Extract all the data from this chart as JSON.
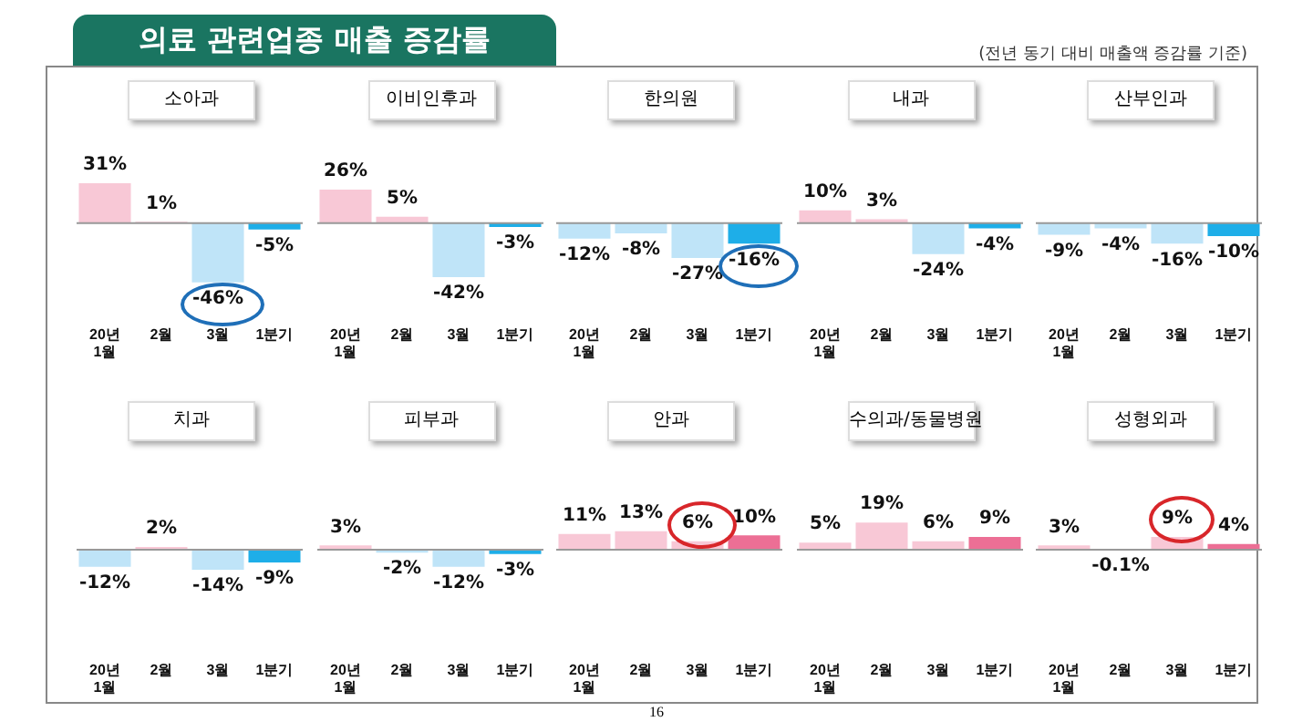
{
  "chart_data": [
    {
      "type": "other",
      "title": "의료 관련업종 매출 증감률",
      "subtitle": "(전년 동기 대비 매출액 증감률 기준)",
      "annotations": [
        "16"
      ]
    },
    {
      "type": "bar",
      "title": "소아과",
      "categories": [
        "20년 1월",
        "2월",
        "3월",
        "1분기"
      ],
      "values": [
        31,
        1,
        -46,
        -5
      ],
      "value_labels": [
        "31%",
        "1%",
        "-46%",
        "-5%"
      ],
      "colors": [
        "#f8c8d6",
        "#f8c8d6",
        "#bfe4f8",
        "#1eaee8"
      ]
    },
    {
      "type": "bar",
      "title": "이비인후과",
      "categories": [
        "20년 1월",
        "2월",
        "3월",
        "1분기"
      ],
      "values": [
        26,
        5,
        -42,
        -3
      ],
      "value_labels": [
        "26%",
        "5%",
        "-42%",
        "-3%"
      ],
      "colors": [
        "#f8c8d6",
        "#f8c8d6",
        "#bfe4f8",
        "#1eaee8"
      ]
    },
    {
      "type": "bar",
      "title": "한의원",
      "categories": [
        "20년 1월",
        "2월",
        "3월",
        "1분기"
      ],
      "values": [
        -12,
        -8,
        -27,
        -16
      ],
      "value_labels": [
        "-12%",
        "-8%",
        "-27%",
        "-16%"
      ],
      "colors": [
        "#bfe4f8",
        "#bfe4f8",
        "#bfe4f8",
        "#1eaee8"
      ]
    },
    {
      "type": "bar",
      "title": "내과",
      "categories": [
        "20년 1월",
        "2월",
        "3월",
        "1분기"
      ],
      "values": [
        10,
        3,
        -24,
        -4
      ],
      "value_labels": [
        "10%",
        "3%",
        "-24%",
        "-4%"
      ],
      "colors": [
        "#f8c8d6",
        "#f8c8d6",
        "#bfe4f8",
        "#1eaee8"
      ]
    },
    {
      "type": "bar",
      "title": "산부인과",
      "categories": [
        "20년 1월",
        "2월",
        "3월",
        "1분기"
      ],
      "values": [
        -9,
        -4,
        -16,
        -10
      ],
      "value_labels": [
        "-9%",
        "-4%",
        "-16%",
        "-10%"
      ],
      "colors": [
        "#bfe4f8",
        "#bfe4f8",
        "#bfe4f8",
        "#1eaee8"
      ]
    },
    {
      "type": "bar",
      "title": "치과",
      "categories": [
        "20년 1월",
        "2월",
        "3월",
        "1분기"
      ],
      "values": [
        -12,
        2,
        -14,
        -9
      ],
      "value_labels": [
        "-12%",
        "2%",
        "-14%",
        "-9%"
      ],
      "colors": [
        "#bfe4f8",
        "#f8c8d6",
        "#bfe4f8",
        "#1eaee8"
      ]
    },
    {
      "type": "bar",
      "title": "피부과",
      "categories": [
        "20년 1월",
        "2월",
        "3월",
        "1분기"
      ],
      "values": [
        3,
        -2,
        -12,
        -3
      ],
      "value_labels": [
        "3%",
        "-2%",
        "-12%",
        "-3%"
      ],
      "colors": [
        "#f8c8d6",
        "#bfe4f8",
        "#bfe4f8",
        "#1eaee8"
      ]
    },
    {
      "type": "bar",
      "title": "안과",
      "categories": [
        "20년 1월",
        "2월",
        "3월",
        "1분기"
      ],
      "values": [
        11,
        13,
        6,
        10
      ],
      "value_labels": [
        "11%",
        "13%",
        "6%",
        "10%"
      ],
      "colors": [
        "#f8c8d6",
        "#f8c8d6",
        "#f8c8d6",
        "#ec6f95"
      ]
    },
    {
      "type": "bar",
      "title": "수의과/동물병원",
      "categories": [
        "20년 1월",
        "2월",
        "3월",
        "1분기"
      ],
      "values": [
        5,
        19,
        6,
        9
      ],
      "value_labels": [
        "5%",
        "19%",
        "6%",
        "9%"
      ],
      "colors": [
        "#f8c8d6",
        "#f8c8d6",
        "#f8c8d6",
        "#ec6f95"
      ]
    },
    {
      "type": "bar",
      "title": "성형외과",
      "categories": [
        "20년 1월",
        "2월",
        "3월",
        "1분기"
      ],
      "values": [
        3,
        -0.1,
        9,
        4
      ],
      "value_labels": [
        "3%",
        "-0.1%",
        "9%",
        "4%"
      ],
      "colors": [
        "#f8c8d6",
        "#bfe4f8",
        "#f8c8d6",
        "#ec6f95"
      ]
    }
  ]
}
